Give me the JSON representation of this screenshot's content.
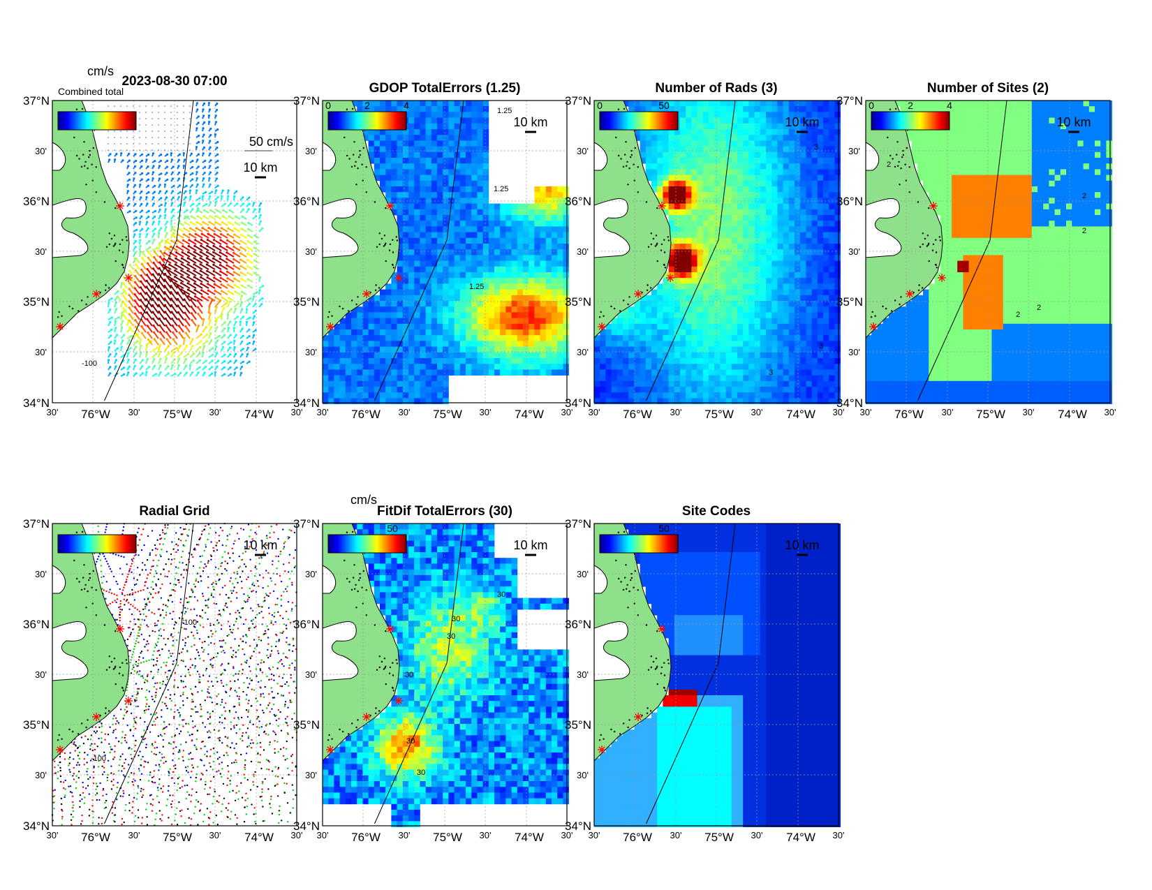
{
  "figure": {
    "timestamp": "2023-08-30 07:00",
    "units_label": "cm/s",
    "legend_overlap_text": "Combined total",
    "scale_vector_label": "50 cm/s",
    "scale_bar_label": "10 km"
  },
  "axes_ticks": {
    "lat_major": [
      "37°N",
      "36°N",
      "35°N",
      "34°N"
    ],
    "lat_minor": "30'",
    "lon_major": [
      "76°W",
      "75°W",
      "74°W"
    ],
    "lon_minor": "30'"
  },
  "panels": [
    {
      "id": "totals",
      "title": "",
      "colorbar_ticks": [],
      "contour_labels": [
        "-100"
      ]
    },
    {
      "id": "gdop",
      "title": "GDOP TotalErrors (1.25)",
      "colorbar_ticks": [
        "0",
        "2",
        "4"
      ],
      "contour_labels": [
        "1.25",
        "1.25",
        "1.25"
      ]
    },
    {
      "id": "nrads",
      "title": "Number of Rads (3)",
      "colorbar_ticks": [
        "0",
        "50"
      ],
      "contour_labels": [
        "3",
        "3",
        "3"
      ]
    },
    {
      "id": "nsites",
      "title": "Number of Sites (2)",
      "colorbar_ticks": [
        "0",
        "2",
        "4"
      ],
      "contour_labels": [
        "2",
        "2",
        "2",
        "2",
        "2"
      ]
    },
    {
      "id": "radgrid",
      "title": "Radial Grid",
      "colorbar_ticks": [],
      "contour_labels": [
        "-100",
        "-100"
      ]
    },
    {
      "id": "fitdif",
      "title": "FitDif TotalErrors (30)",
      "colorbar_ticks": [
        "50"
      ],
      "units_label": "cm/s",
      "contour_labels": [
        "30",
        "30",
        "30",
        "30",
        "30",
        "30"
      ]
    },
    {
      "id": "sitecodes",
      "title": "Site Codes",
      "colorbar_ticks": [
        "50"
      ],
      "contour_labels": []
    }
  ],
  "colors": {
    "land": "#8fe08a",
    "site_marker": "#ff0000",
    "radial_sites": [
      "#0000ff",
      "#ff0000",
      "#00d000",
      "#000000"
    ]
  }
}
